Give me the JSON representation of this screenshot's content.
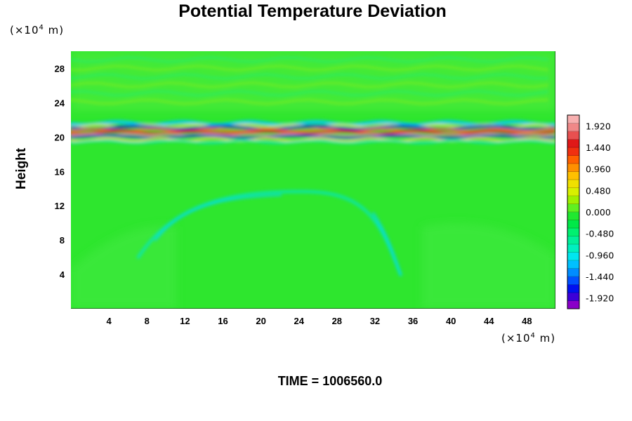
{
  "chart_data": {
    "type": "heatmap",
    "title": "Potential Temperature Deviation",
    "ylabel": "Height",
    "x_unit": "(×10",
    "x_unit_exp": "4",
    "x_unit_tail": " m)",
    "y_unit": "(×10",
    "y_unit_exp": "4",
    "y_unit_tail": " m)",
    "xlim": [
      0,
      51
    ],
    "ylim": [
      0,
      30
    ],
    "x_ticks": [
      4,
      8,
      12,
      16,
      20,
      24,
      28,
      32,
      36,
      40,
      44,
      48
    ],
    "y_ticks": [
      4,
      8,
      12,
      16,
      20,
      24,
      28
    ],
    "colorbar_labels": [
      "1.920",
      "1.440",
      "0.960",
      "0.480",
      "0.000",
      "-0.480",
      "-0.960",
      "-1.440",
      "-1.920"
    ],
    "colorbar_range": [
      -2.16,
      2.16
    ],
    "colorbar_colors": [
      "#8a00c8",
      "#3c00d8",
      "#0010f0",
      "#0050ff",
      "#008cff",
      "#00c0ff",
      "#00e6f0",
      "#00f0c0",
      "#00f09a",
      "#00f070",
      "#00e848",
      "#20e830",
      "#60f020",
      "#a0f000",
      "#d8f000",
      "#f0e000",
      "#ffc000",
      "#ff9000",
      "#ff6000",
      "#f03010",
      "#e01818",
      "#e85050",
      "#f08888",
      "#f8b0b0"
    ],
    "background_color": "#2ee62e",
    "time_label": "TIME = 1006560.0"
  }
}
